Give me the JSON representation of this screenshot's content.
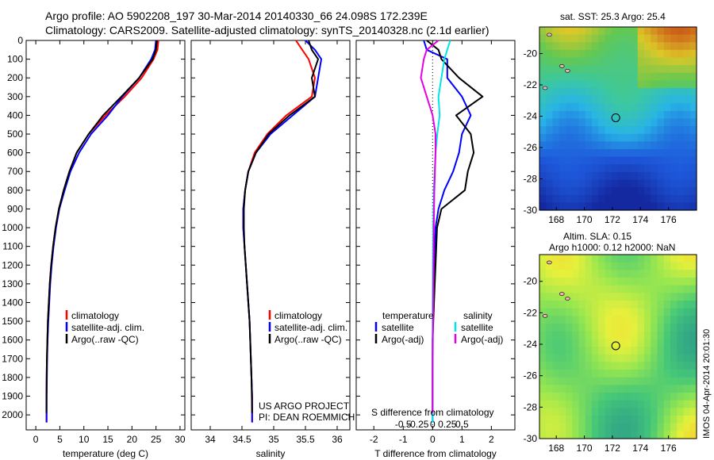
{
  "header": {
    "line1": "Argo profile: AO 5902208_197 30-Mar-2014 20140330_66 24.098S 172.239E",
    "line2": "Climatology: CARS2009. Satellite-adjusted climatology: synTS_20140328.nc (2.1d earlier)"
  },
  "colors": {
    "climatology": "#ff0000",
    "satellite": "#0000ff",
    "argo": "#000000",
    "salinity_satellite": "#00e5e5",
    "salinity_argo": "#e600e6"
  },
  "chart_data": [
    {
      "type": "line",
      "name": "temperature-profile",
      "xlabel": "temperature (deg C)",
      "ylabel": "",
      "xlim": [
        -2,
        31
      ],
      "ylim": [
        2080,
        0
      ],
      "x_ticks": [
        0,
        5,
        10,
        15,
        20,
        25,
        30
      ],
      "y_ticks": [
        0,
        100,
        200,
        300,
        400,
        500,
        600,
        700,
        800,
        900,
        1000,
        1100,
        1200,
        1300,
        1400,
        1500,
        1600,
        1700,
        1800,
        1900,
        2000
      ],
      "legend_position": "lower-center",
      "series": [
        {
          "name": "climatology",
          "color": "#ff0000",
          "x": [
            25.5,
            25.3,
            24.5,
            22.0,
            18.5,
            14.5,
            11.0,
            8.5,
            7.0,
            5.8,
            4.8,
            4.1,
            3.6,
            3.2,
            2.9,
            2.7,
            2.5,
            2.4,
            2.3,
            2.25,
            2.2,
            2.2
          ],
          "y": [
            0,
            50,
            100,
            200,
            300,
            400,
            500,
            600,
            700,
            800,
            900,
            1000,
            1100,
            1200,
            1300,
            1400,
            1500,
            1600,
            1700,
            1800,
            1900,
            2040
          ]
        },
        {
          "name": "satellite-adj. clim.",
          "color": "#0000ff",
          "x": [
            25.0,
            24.8,
            24.0,
            21.5,
            18.0,
            15.0,
            11.5,
            9.0,
            7.2,
            6.0,
            4.9,
            4.2,
            3.7,
            3.3,
            3.0,
            2.8,
            2.6,
            2.45,
            2.35,
            2.3,
            2.25,
            2.25
          ],
          "y": [
            0,
            50,
            100,
            200,
            300,
            400,
            500,
            600,
            700,
            800,
            900,
            1000,
            1100,
            1200,
            1300,
            1400,
            1500,
            1600,
            1700,
            1800,
            1900,
            2040
          ]
        },
        {
          "name": "Argo(..raw -QC)",
          "color": "#000000",
          "x": [
            25.2,
            25.0,
            24.3,
            21.5,
            17.8,
            14.0,
            11.0,
            8.5,
            7.0,
            5.8,
            4.8,
            4.1,
            3.6,
            3.2,
            2.9,
            2.7,
            2.5,
            2.4,
            2.3,
            2.25,
            2.2
          ],
          "y": [
            0,
            50,
            100,
            200,
            300,
            400,
            500,
            600,
            700,
            800,
            900,
            1000,
            1100,
            1200,
            1300,
            1400,
            1500,
            1600,
            1700,
            1800,
            1990
          ]
        }
      ]
    },
    {
      "type": "line",
      "name": "salinity-profile",
      "xlabel": "salinity",
      "xlim": [
        33.7,
        36.2
      ],
      "ylim": [
        2080,
        0
      ],
      "x_ticks": [
        34,
        34.5,
        35,
        35.5,
        36
      ],
      "legend_position": "lower-center",
      "annotation_line1": "US ARGO PROJECT",
      "annotation_line2": "PI: DEAN ROEMMICH",
      "series": [
        {
          "name": "climatology",
          "color": "#ff0000",
          "x": [
            35.35,
            35.45,
            35.55,
            35.65,
            35.6,
            35.2,
            34.9,
            34.7,
            34.6,
            34.55,
            34.52,
            34.52,
            34.54,
            34.56,
            34.58,
            34.6,
            34.62,
            34.63,
            34.64,
            34.65,
            34.66,
            34.66
          ],
          "y": [
            0,
            50,
            100,
            200,
            300,
            400,
            500,
            600,
            700,
            800,
            900,
            1000,
            1100,
            1200,
            1300,
            1400,
            1500,
            1600,
            1700,
            1800,
            1900,
            2040
          ]
        },
        {
          "name": "satellite-adj. clim.",
          "color": "#0000ff",
          "x": [
            35.5,
            35.65,
            35.75,
            35.7,
            35.65,
            35.3,
            34.95,
            34.72,
            34.6,
            34.55,
            34.52,
            34.52,
            34.54,
            34.56,
            34.58,
            34.6,
            34.62,
            34.63,
            34.64,
            34.65,
            34.66,
            34.66
          ],
          "y": [
            0,
            50,
            100,
            200,
            300,
            400,
            500,
            600,
            700,
            800,
            900,
            1000,
            1100,
            1200,
            1300,
            1400,
            1500,
            1600,
            1700,
            1800,
            1900,
            2040
          ]
        },
        {
          "name": "Argo(..raw -QC)",
          "color": "#000000",
          "x": [
            35.55,
            35.6,
            35.7,
            35.6,
            35.65,
            35.25,
            34.92,
            34.72,
            34.6,
            34.55,
            34.53,
            34.53,
            34.54,
            34.56,
            34.58,
            34.6,
            34.62,
            34.63,
            34.64,
            34.65,
            34.66
          ],
          "y": [
            0,
            50,
            100,
            200,
            300,
            400,
            500,
            600,
            700,
            800,
            900,
            1000,
            1100,
            1200,
            1300,
            1400,
            1500,
            1600,
            1700,
            1800,
            1990
          ]
        }
      ]
    },
    {
      "type": "line",
      "name": "difference-profile",
      "xlabel_top": "S difference from climatology",
      "xlabel": "T difference from climatology",
      "xlim": [
        -2.6,
        2.8
      ],
      "ylim": [
        2080,
        0
      ],
      "x_ticks": [
        -2,
        -1,
        0,
        1,
        2
      ],
      "s_ticks_values": [
        -0.5,
        -0.25,
        0,
        0.25,
        0.5
      ],
      "s_tick_labels": [
        "-0.5",
        "-0.25",
        "0",
        "0.25",
        "0.5"
      ],
      "legend_temperature_title": "temperature",
      "legend_salinity_title": "salinity",
      "series": [
        {
          "name": "satellite",
          "group": "temperature",
          "color": "#0000ff",
          "x": [
            -0.3,
            -0.2,
            0.5,
            0.5,
            1.0,
            1.3,
            1.0,
            0.9,
            0.7,
            0.4,
            0.2,
            0.1,
            0.05,
            0.02,
            0.0,
            0.0,
            0.0
          ],
          "y": [
            0,
            50,
            100,
            200,
            300,
            400,
            500,
            600,
            700,
            800,
            900,
            1000,
            1200,
            1400,
            1600,
            1800,
            2040
          ]
        },
        {
          "name": "Argo(-adj)",
          "group": "temperature",
          "color": "#000000",
          "x": [
            -0.2,
            0.2,
            0.3,
            0.9,
            1.7,
            0.8,
            1.3,
            1.4,
            1.2,
            1.1,
            0.3,
            0.15,
            0.1,
            0.05,
            0.0,
            0.0
          ],
          "y": [
            0,
            50,
            100,
            200,
            300,
            400,
            500,
            600,
            700,
            800,
            900,
            1000,
            1200,
            1400,
            1600,
            1990
          ]
        },
        {
          "name": "satellite",
          "group": "salinity",
          "color": "#00e5e5",
          "x": [
            0.3,
            0.25,
            0.2,
            0.15,
            0.1,
            0.12,
            0.08,
            0.05,
            0.02,
            0.01,
            0.0,
            0.0,
            0.0
          ],
          "y": [
            0,
            50,
            100,
            200,
            300,
            400,
            500,
            600,
            800,
            1000,
            1400,
            1800,
            2040
          ]
        },
        {
          "name": "Argo(-adj)",
          "group": "salinity",
          "color": "#e600e6",
          "x": [
            0.1,
            -0.1,
            -0.15,
            -0.2,
            -0.1,
            0.0,
            0.05,
            0.05,
            0.03,
            0.02,
            0.01,
            0.0,
            0.0
          ],
          "y": [
            0,
            50,
            100,
            200,
            300,
            400,
            500,
            600,
            800,
            1000,
            1400,
            1800,
            1990
          ]
        }
      ]
    },
    {
      "type": "heatmap",
      "name": "sst-map",
      "title": "sat. SST: 25.3  Argo: 25.4",
      "x_ticks": [
        168,
        170,
        172,
        174,
        176
      ],
      "y_ticks": [
        -20,
        -22,
        -24,
        -26,
        -28,
        -30
      ],
      "xlim": [
        166.8,
        178.0
      ],
      "ylim": [
        -30,
        -18.3
      ],
      "argo_position": [
        172.239,
        -24.098
      ]
    },
    {
      "type": "heatmap",
      "name": "sla-map",
      "title_line1": "Altim. SLA: 0.15",
      "title_line2": "Argo h1000: 0.12 h2000: NaN",
      "x_ticks": [
        168,
        170,
        172,
        174,
        176
      ],
      "y_ticks": [
        -20,
        -22,
        -24,
        -26,
        -28,
        -30
      ],
      "xlim": [
        166.8,
        178.0
      ],
      "ylim": [
        -30,
        -18.3
      ],
      "argo_position": [
        172.239,
        -24.098
      ]
    }
  ],
  "legend_labels": {
    "climatology": "climatology",
    "satellite_adj": "satellite-adj. clim.",
    "argo": "Argo(..raw -QC)"
  },
  "footer": {
    "stamp": "IMOS 04-Apr-2014 20:01:30"
  }
}
